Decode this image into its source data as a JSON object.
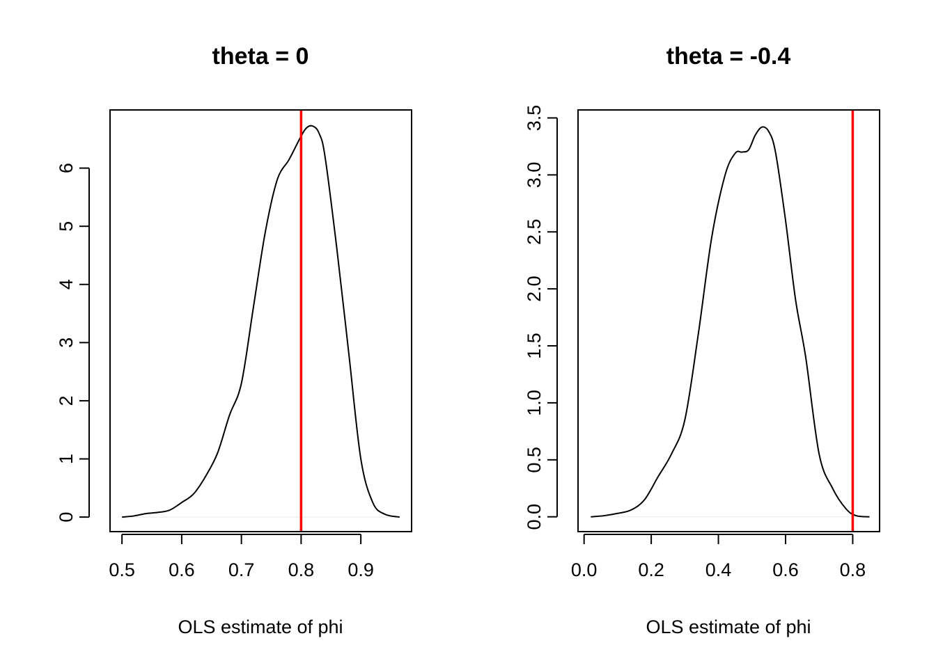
{
  "chart_data": [
    {
      "type": "line",
      "title": "theta = 0",
      "xlabel": "OLS estimate of phi",
      "ylabel": "",
      "xlim": [
        0.48,
        0.985
      ],
      "ylim": [
        -0.25,
        7.0
      ],
      "xticks": [
        {
          "value": 0.5,
          "label": "0.5"
        },
        {
          "value": 0.6,
          "label": "0.6"
        },
        {
          "value": 0.7,
          "label": "0.7"
        },
        {
          "value": 0.8,
          "label": "0.8"
        },
        {
          "value": 0.9,
          "label": "0.9"
        }
      ],
      "yticks": [
        {
          "value": 0,
          "label": "0"
        },
        {
          "value": 1,
          "label": "1"
        },
        {
          "value": 2,
          "label": "2"
        },
        {
          "value": 3,
          "label": "3"
        },
        {
          "value": 4,
          "label": "4"
        },
        {
          "value": 5,
          "label": "5"
        },
        {
          "value": 6,
          "label": "6"
        }
      ],
      "vline": {
        "x": 0.8,
        "color": "#ff0000"
      },
      "line_color": "#000000",
      "series": [
        {
          "x": [
            0.5,
            0.52,
            0.54,
            0.56,
            0.58,
            0.6,
            0.62,
            0.64,
            0.66,
            0.68,
            0.7,
            0.72,
            0.74,
            0.76,
            0.78,
            0.8,
            0.81,
            0.82,
            0.83,
            0.84,
            0.86,
            0.88,
            0.9,
            0.92,
            0.94,
            0.965
          ],
          "y": [
            0.0,
            0.02,
            0.06,
            0.08,
            0.12,
            0.25,
            0.4,
            0.7,
            1.1,
            1.75,
            2.3,
            3.6,
            4.9,
            5.8,
            6.15,
            6.55,
            6.7,
            6.72,
            6.6,
            6.2,
            4.6,
            2.8,
            1.0,
            0.25,
            0.05,
            0.0
          ]
        }
      ]
    },
    {
      "type": "line",
      "title": "theta = -0.4",
      "xlabel": "OLS estimate of phi",
      "ylabel": "",
      "xlim": [
        -0.018,
        0.88
      ],
      "ylim": [
        -0.13,
        3.57
      ],
      "xticks": [
        {
          "value": 0.0,
          "label": "0.0"
        },
        {
          "value": 0.2,
          "label": "0.2"
        },
        {
          "value": 0.4,
          "label": "0.4"
        },
        {
          "value": 0.6,
          "label": "0.6"
        },
        {
          "value": 0.8,
          "label": "0.8"
        }
      ],
      "yticks": [
        {
          "value": 0.0,
          "label": "0.0"
        },
        {
          "value": 0.5,
          "label": "0.5"
        },
        {
          "value": 1.0,
          "label": "1.0"
        },
        {
          "value": 1.5,
          "label": "1.5"
        },
        {
          "value": 2.0,
          "label": "2.0"
        },
        {
          "value": 2.5,
          "label": "2.5"
        },
        {
          "value": 3.0,
          "label": "3.0"
        },
        {
          "value": 3.5,
          "label": "3.5"
        }
      ],
      "vline": {
        "x": 0.8,
        "color": "#ff0000"
      },
      "line_color": "#000000",
      "series": [
        {
          "x": [
            0.02,
            0.06,
            0.1,
            0.14,
            0.18,
            0.22,
            0.26,
            0.3,
            0.34,
            0.38,
            0.42,
            0.45,
            0.47,
            0.49,
            0.51,
            0.53,
            0.55,
            0.57,
            0.6,
            0.63,
            0.66,
            0.7,
            0.74,
            0.78,
            0.81,
            0.85
          ],
          "y": [
            0.0,
            0.01,
            0.03,
            0.06,
            0.15,
            0.35,
            0.55,
            0.85,
            1.6,
            2.45,
            3.0,
            3.19,
            3.2,
            3.22,
            3.35,
            3.42,
            3.38,
            3.2,
            2.6,
            1.9,
            1.4,
            0.55,
            0.25,
            0.07,
            0.01,
            0.0
          ]
        }
      ]
    }
  ]
}
